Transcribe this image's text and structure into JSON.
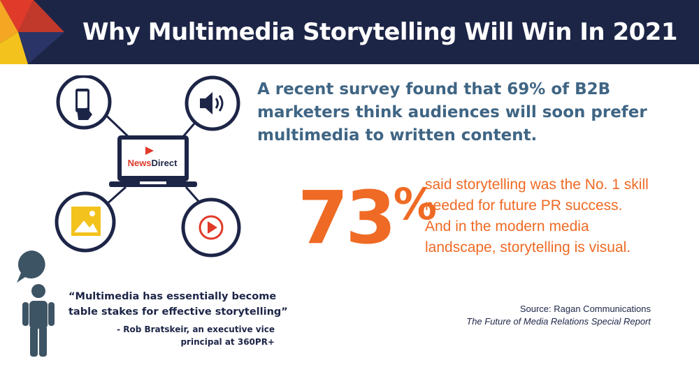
{
  "banner": {
    "title": "Why Multimedia Storytelling Will Win In 2021"
  },
  "diagram": {
    "laptop_brand_news": "News",
    "laptop_brand_direct": "Direct",
    "icons": [
      "mobile-phone-icon",
      "speaker-icon",
      "image-icon",
      "play-video-icon",
      "laptop-icon"
    ]
  },
  "headline": "A recent survey found that 69% of B2B marketers think audiences will soon prefer multimedia to written content.",
  "stat": {
    "number": "73",
    "symbol": "%",
    "description": "said storytelling was the No. 1 skill needed for future PR success. And in the modern media landscape, storytelling is visual."
  },
  "quote": {
    "text": "“Multimedia has essentially become table stakes for effective storytelling”",
    "attribution": "- Rob Bratskeir, an executive vice principal at 360PR+"
  },
  "source": {
    "line1": "Source: Ragan Communications",
    "line2": "The Future of Media Relations Special Report"
  },
  "colors": {
    "navy": "#1d2547",
    "orange": "#ef6a24",
    "steel_blue": "#3f6584",
    "slate": "#3d5465"
  }
}
